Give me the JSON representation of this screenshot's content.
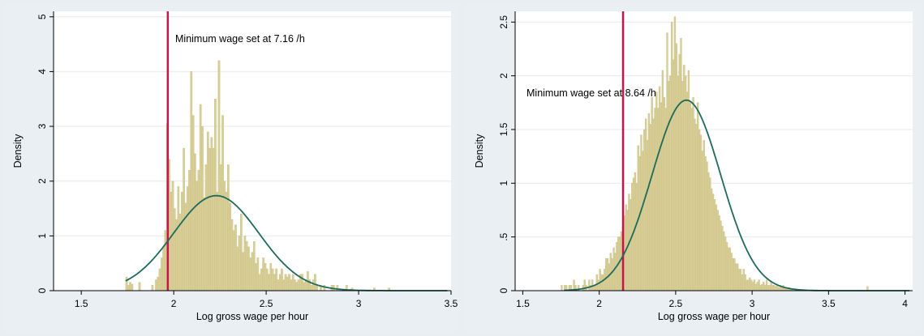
{
  "chart_data": [
    {
      "type": "histogram",
      "xlabel": "Log gross wage per hour",
      "ylabel": "Density",
      "xlim": [
        1.35,
        3.5
      ],
      "ylim": [
        0,
        5.1
      ],
      "xticks": [
        "1.5",
        "2",
        "2.5",
        "3",
        "3.5"
      ],
      "yticks": [
        "0",
        "1",
        "2",
        "3",
        "4",
        "5"
      ],
      "grid": true,
      "annotation": "Minimum wage set at 7.16 /h",
      "min_wage_log": 1.968,
      "normal_fit": {
        "mean": 2.23,
        "sd": 0.23
      },
      "bin_width": 0.01,
      "bins_start": 1.74,
      "densities": [
        0.25,
        0.1,
        0.15,
        0.12,
        0.0,
        0.0,
        0.0,
        0.15,
        0.0,
        0.0,
        0.0,
        0.0,
        0.0,
        0.0,
        0.1,
        0.0,
        0.2,
        0.25,
        0.4,
        0.6,
        0.8,
        1.1,
        3.05,
        2.4,
        1.8,
        2.0,
        1.5,
        1.3,
        1.9,
        1.4,
        1.8,
        2.6,
        1.6,
        1.9,
        2.2,
        4.0,
        3.2,
        2.5,
        2.0,
        2.2,
        3.4,
        3.0,
        1.7,
        2.3,
        2.9,
        2.6,
        2.8,
        2.6,
        3.5,
        1.8,
        4.2,
        2.3,
        3.2,
        2.0,
        1.8,
        2.3,
        1.6,
        1.3,
        1.1,
        1.2,
        0.8,
        1.0,
        1.4,
        0.7,
        1.0,
        0.9,
        0.8,
        0.6,
        0.7,
        0.9,
        0.5,
        0.6,
        0.3,
        0.4,
        0.6,
        0.5,
        0.4,
        0.3,
        0.5,
        0.4,
        0.3,
        0.4,
        0.2,
        0.3,
        0.4,
        0.2,
        0.3,
        0.25,
        0.3,
        0.2,
        0.3,
        0.2,
        0.15,
        0.2,
        0.3,
        0.3,
        0.15,
        0.2,
        0.35,
        0.2,
        0.1,
        0.2,
        0.3,
        0.1,
        0.0,
        0.1,
        0.0,
        0.1,
        0.0,
        0.0,
        0.0,
        0.1,
        0.1,
        0.0,
        0.1,
        0.0,
        0.0,
        0.0,
        0.0,
        0.1,
        0.0,
        0.0,
        0.05,
        0.0,
        0.0,
        0.0,
        0.0,
        0.0,
        0.0,
        0.0,
        0.0,
        0.0,
        0.0,
        0.0,
        0.05,
        0.0,
        0.0,
        0.0,
        0.0,
        0.0,
        0.0,
        0.0,
        0.05
      ]
    },
    {
      "type": "histogram",
      "xlabel": "Log gross wage per hour",
      "ylabel": "Density",
      "xlim": [
        1.45,
        4.05
      ],
      "ylim": [
        0,
        2.6
      ],
      "xticks": [
        "1.5",
        "2",
        "2.5",
        "3",
        "3.5",
        "4"
      ],
      "yticks": [
        "0",
        ".5",
        "1",
        "1.5",
        "2",
        "2.5"
      ],
      "grid": true,
      "annotation": "Minimum wage set at 8.64 /h",
      "min_wage_log": 2.156,
      "normal_fit": {
        "mean": 2.57,
        "sd": 0.225
      },
      "bin_width": 0.01,
      "bins_start": 1.75,
      "densities": [
        0.05,
        0.0,
        0.05,
        0.05,
        0.0,
        0.05,
        0.05,
        0.0,
        0.1,
        0.05,
        0.0,
        0.05,
        0.0,
        0.0,
        0.05,
        0.1,
        0.05,
        0.0,
        0.1,
        0.05,
        0.1,
        0.05,
        0.05,
        0.15,
        0.1,
        0.2,
        0.15,
        0.15,
        0.2,
        0.3,
        0.3,
        0.25,
        0.35,
        0.3,
        0.4,
        0.35,
        0.45,
        0.5,
        0.5,
        0.55,
        0.6,
        0.7,
        0.8,
        0.75,
        0.9,
        0.85,
        1.0,
        1.05,
        1.1,
        1.0,
        1.35,
        1.25,
        1.45,
        1.3,
        1.5,
        1.6,
        1.4,
        1.65,
        1.55,
        1.8,
        1.6,
        1.7,
        1.85,
        1.7,
        1.9,
        1.75,
        2.05,
        1.8,
        1.7,
        2.4,
        1.95,
        2.0,
        2.5,
        2.15,
        2.55,
        2.3,
        2.0,
        2.2,
        2.35,
        1.95,
        2.1,
        2.0,
        1.85,
        2.05,
        1.75,
        1.7,
        1.8,
        1.6,
        1.55,
        1.75,
        1.5,
        1.45,
        1.3,
        1.4,
        1.25,
        1.2,
        1.1,
        1.05,
        0.95,
        0.9,
        0.85,
        0.8,
        0.75,
        0.7,
        0.65,
        0.6,
        0.55,
        0.5,
        0.45,
        0.4,
        0.4,
        0.35,
        0.3,
        0.3,
        0.25,
        0.25,
        0.2,
        0.2,
        0.15,
        0.2,
        0.15,
        0.1,
        0.1,
        0.12,
        0.1,
        0.08,
        0.1,
        0.06,
        0.08,
        0.1,
        0.05,
        0.06,
        0.08,
        0.05,
        0.1,
        0.05,
        0.05,
        0.08,
        0.05,
        0.05,
        0.04,
        0.05,
        0.03,
        0.05,
        0.03,
        0.05,
        0.02,
        0.03,
        0.02,
        0.03,
        0.02,
        0.02,
        0.0,
        0.02,
        0.0,
        0.0,
        0.0,
        0.0,
        0.0,
        0.0,
        0.0,
        0.0,
        0.0,
        0.0,
        0.0,
        0.0,
        0.0,
        0.0,
        0.0,
        0.0,
        0.0,
        0.0,
        0.0,
        0.0,
        0.0,
        0.0,
        0.0,
        0.0,
        0.0,
        0.0,
        0.0,
        0.0,
        0.0,
        0.0,
        0.0,
        0.0,
        0.0,
        0.0,
        0.0,
        0.0,
        0.0,
        0.0,
        0.0,
        0.0,
        0.0,
        0.0,
        0.0,
        0.0,
        0.0,
        0.0,
        0.04
      ]
    }
  ],
  "colors": {
    "bar_fill": "#d8cf98",
    "bar_stroke": "#c9bf82",
    "curve": "#1f6a5b",
    "min_wage_line": "#c8144a",
    "grid": "#e6eaee",
    "plot_bg": "#ffffff",
    "panel_bg": "#e9eff3"
  }
}
